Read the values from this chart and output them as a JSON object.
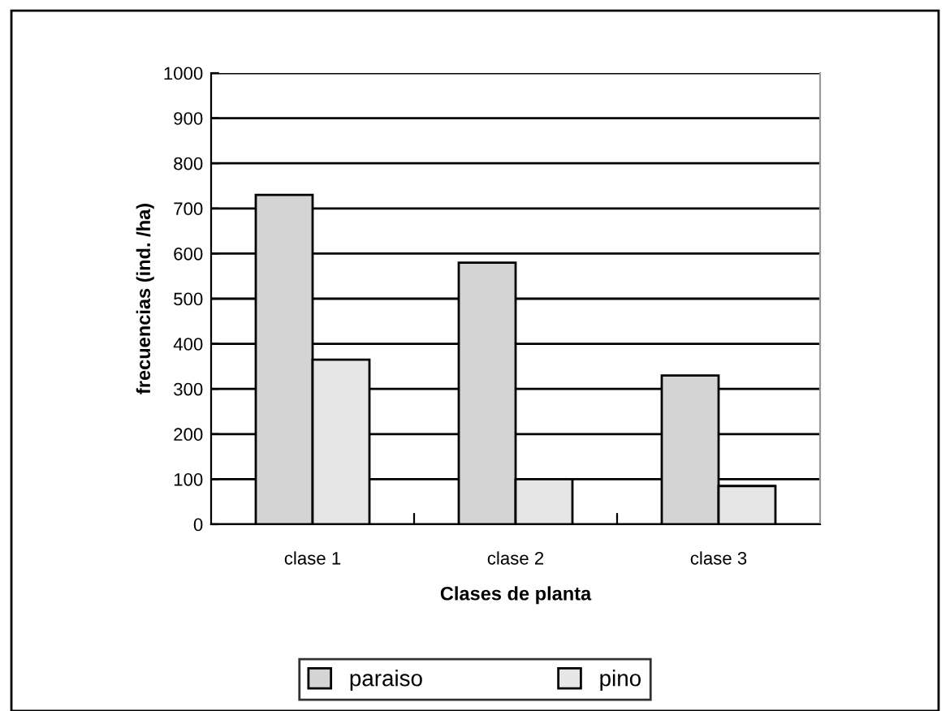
{
  "chart_data": {
    "type": "bar",
    "xlabel": "Clases de planta",
    "ylabel": "frecuencias (ind. /ha)",
    "categories": [
      "clase 1",
      "clase 2",
      "clase 3"
    ],
    "series": [
      {
        "name": "paraiso",
        "color": "#d4d4d4",
        "values": [
          730,
          580,
          330
        ]
      },
      {
        "name": "pino",
        "color": "#e6e6e6",
        "values": [
          365,
          100,
          85
        ]
      }
    ],
    "ylim": [
      0,
      1000
    ],
    "yticks": [
      0,
      100,
      200,
      300,
      400,
      500,
      600,
      700,
      800,
      900,
      1000
    ],
    "grid": "y",
    "legend": "bottom"
  }
}
